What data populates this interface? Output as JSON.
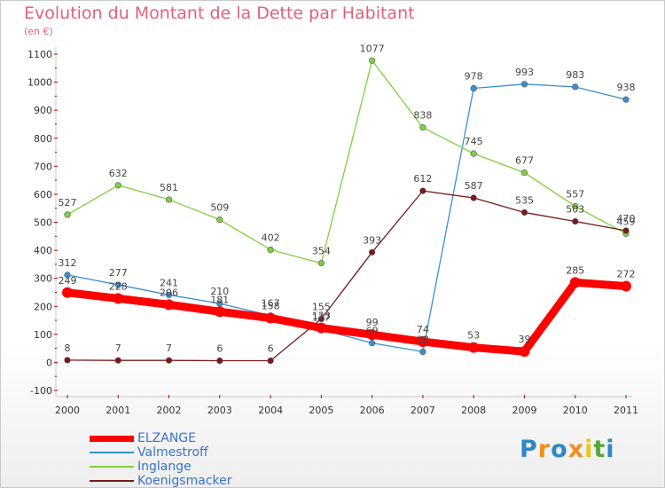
{
  "title": "Evolution du Montant de la Dette par Habitant",
  "subtitle": "(en €)",
  "brand": {
    "letters": [
      "P",
      "r",
      "o",
      "x",
      "i",
      "t",
      "i"
    ],
    "colors": [
      "#2f87c7",
      "#f28c1e",
      "#2f87c7",
      "#f28c1e",
      "#f0c419",
      "#5aa537",
      "#2f87c7"
    ]
  },
  "chart_data": {
    "type": "line",
    "x": [
      "2000",
      "2001",
      "2002",
      "2003",
      "2004",
      "2005",
      "2006",
      "2007",
      "2008",
      "2009",
      "2010",
      "2011"
    ],
    "y_ticks": [
      "-100",
      "0",
      "100",
      "200",
      "300",
      "400",
      "500",
      "600",
      "700",
      "800",
      "900",
      "1000",
      "1100"
    ],
    "ylim": [
      -100,
      1100
    ],
    "grid": false,
    "legend_position": "bottom-left",
    "series": [
      {
        "name": "ELZANGE",
        "color": "#ff0000",
        "values": [
          249,
          228,
          206,
          181,
          158,
          123,
          99,
          74,
          53,
          39,
          285,
          272
        ],
        "labels": [
          "249",
          "228",
          "206",
          "181",
          "158",
          "123",
          "99",
          "74",
          "53",
          "39",
          "285",
          "272"
        ]
      },
      {
        "name": "Valmestroff",
        "color": "#3b8fd1",
        "values": [
          312,
          277,
          241,
          210,
          167,
          117,
          69,
          38,
          978,
          993,
          983,
          938
        ],
        "labels": [
          "312",
          "277",
          "241",
          "210",
          "167",
          "117",
          "69",
          "38",
          "978",
          "993",
          "983",
          "938"
        ]
      },
      {
        "name": "Inglange",
        "color": "#80d040",
        "values": [
          527,
          632,
          581,
          509,
          402,
          354,
          1077,
          838,
          745,
          677,
          557,
          459
        ],
        "labels": [
          "527",
          "632",
          "581",
          "509",
          "402",
          "354",
          "1077",
          "838",
          "745",
          "677",
          "557",
          "459"
        ]
      },
      {
        "name": "Koenigsmacker",
        "color": "#7a1a1a",
        "values": [
          8,
          7,
          7,
          6,
          6,
          155,
          393,
          612,
          587,
          535,
          503,
          470
        ],
        "labels": [
          "8",
          "7",
          "7",
          "6",
          "6",
          "155",
          "393",
          "612",
          "587",
          "535",
          "503",
          "470"
        ]
      }
    ]
  }
}
